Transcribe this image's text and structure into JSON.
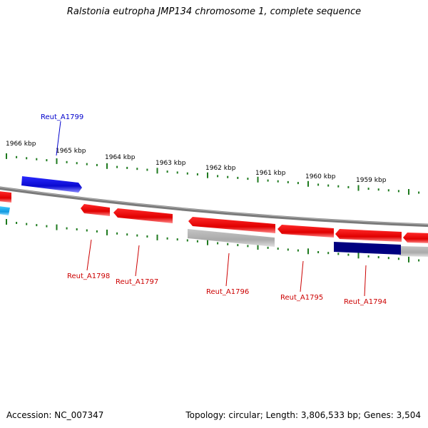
{
  "title": "Ralstonia eutropha JMP134 chromosome 1, complete sequence",
  "accession_text": "Accession: NC_007347",
  "summary_text": "Topology: circular; Length: 3,806,533 bp; Genes: 3,504",
  "ticks": [
    "1966 kbp",
    "1965 kbp",
    "1964 kbp",
    "1963 kbp",
    "1962 kbp",
    "1961 kbp",
    "1960 kbp",
    "1959 kbp"
  ],
  "genes": [
    {
      "name": "Reut_A1799",
      "strand": "+",
      "color": "#1010dd"
    },
    {
      "name": "Reut_A1798",
      "strand": "-",
      "color": "#ee0000"
    },
    {
      "name": "Reut_A1797",
      "strand": "-",
      "color": "#ee0000"
    },
    {
      "name": "Reut_A1796",
      "strand": "-",
      "color": "#ee0000"
    },
    {
      "name": "Reut_A1795",
      "strand": "-",
      "color": "#ee0000"
    },
    {
      "name": "Reut_A1794",
      "strand": "-",
      "color": "#ee0000"
    }
  ],
  "colors": {
    "forward_gene": "#1010dd",
    "reverse_gene": "#ee0000",
    "label_forward": "#0000cc",
    "label_reverse": "#cc0000",
    "tick_mark": "#1e7a1e",
    "backbone": "#808080",
    "gray_feature": "#b8b8b8",
    "navy_feature": "#000080",
    "cyan_feature": "#22aaee"
  }
}
